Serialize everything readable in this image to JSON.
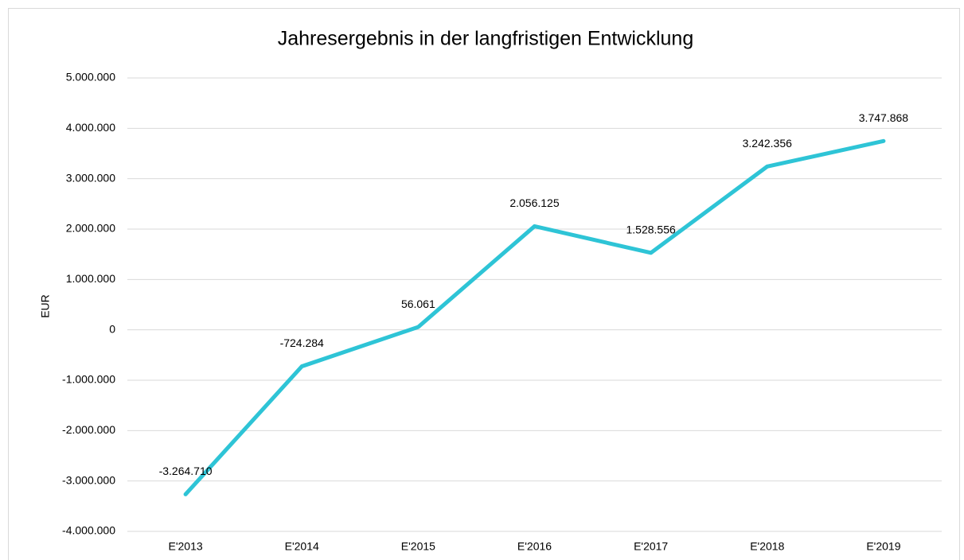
{
  "chart_data": {
    "type": "line",
    "title": "Jahresergebnis in der langfristigen Entwicklung",
    "y_label": "EUR",
    "categories": [
      "E'2013",
      "E'2014",
      "E'2015",
      "E'2016",
      "E'2017",
      "E'2018",
      "E'2019"
    ],
    "series": [
      {
        "name": "Jahresergebnis",
        "color": "#2ec4d6",
        "values": [
          -3264710,
          -724284,
          56061,
          2056125,
          1528556,
          3242356,
          3747868
        ],
        "value_labels": [
          "-3.264.710",
          "-724.284",
          "56.061",
          "2.056.125",
          "1.528.556",
          "3.242.356",
          "3.747.868"
        ]
      }
    ],
    "ylim": [
      -4000000,
      5000000
    ],
    "yticks": [
      {
        "value": -4000000,
        "label": "-4.000.000"
      },
      {
        "value": -3000000,
        "label": "-3.000.000"
      },
      {
        "value": -2000000,
        "label": "-2.000.000"
      },
      {
        "value": -1000000,
        "label": "-1.000.000"
      },
      0,
      {
        "value": 1000000,
        "label": "1.000.000"
      },
      {
        "value": 2000000,
        "label": "2.000.000"
      },
      {
        "value": 3000000,
        "label": "3.000.000"
      },
      {
        "value": 4000000,
        "label": "4.000.000"
      },
      {
        "value": 5000000,
        "label": "5.000.000"
      }
    ],
    "grid": true
  }
}
